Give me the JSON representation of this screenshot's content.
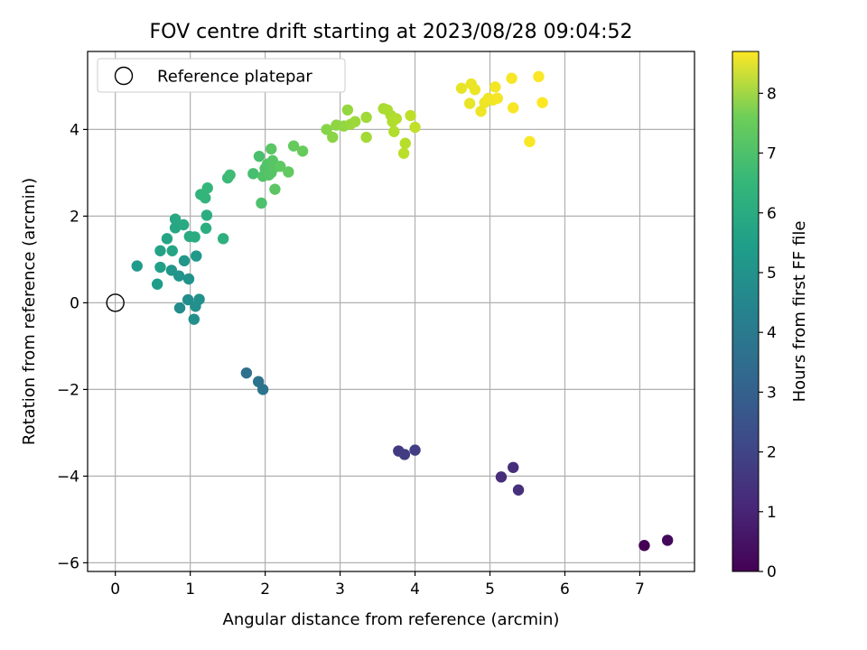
{
  "chart_data": {
    "type": "scatter",
    "title": "FOV centre drift starting at 2023/08/28 09:04:52",
    "xlabel": "Angular distance from reference (arcmin)",
    "ylabel": "Rotation from reference (arcmin)",
    "xlim": [
      -0.37,
      7.73
    ],
    "ylim": [
      -6.2,
      5.8
    ],
    "xticks": [
      0,
      1,
      2,
      3,
      4,
      5,
      6,
      7
    ],
    "yticks": [
      -6,
      -4,
      -2,
      0,
      2,
      4
    ],
    "grid": true,
    "legend": {
      "position": "upper-left",
      "label": "Reference platepar"
    },
    "reference_point": {
      "x": 0,
      "y": 0
    },
    "colorbar": {
      "label": "Hours from first FF file",
      "colormap": "viridis",
      "range": [
        0,
        8.7
      ],
      "ticks": [
        0,
        1,
        2,
        3,
        4,
        5,
        6,
        7,
        8
      ]
    },
    "series": [
      {
        "points": [
          {
            "x": 7.06,
            "y": -5.6,
            "c": 0.0
          },
          {
            "x": 7.37,
            "y": -5.48,
            "c": 0.2
          },
          {
            "x": 5.15,
            "y": -4.02,
            "c": 1.1
          },
          {
            "x": 5.31,
            "y": -3.8,
            "c": 1.15
          },
          {
            "x": 5.38,
            "y": -4.32,
            "c": 1.2
          },
          {
            "x": 3.78,
            "y": -3.42,
            "c": 1.5
          },
          {
            "x": 3.86,
            "y": -3.5,
            "c": 1.55
          },
          {
            "x": 4.0,
            "y": -3.4,
            "c": 1.6
          },
          {
            "x": 1.75,
            "y": -1.62,
            "c": 3.2
          },
          {
            "x": 1.91,
            "y": -1.82,
            "c": 3.3
          },
          {
            "x": 1.97,
            "y": -2.0,
            "c": 3.35
          },
          {
            "x": 0.86,
            "y": -0.12,
            "c": 4.2
          },
          {
            "x": 0.97,
            "y": 0.07,
            "c": 4.25
          },
          {
            "x": 1.05,
            "y": -0.38,
            "c": 4.3
          },
          {
            "x": 1.07,
            "y": -0.08,
            "c": 4.35
          },
          {
            "x": 1.12,
            "y": 0.08,
            "c": 4.4
          },
          {
            "x": 0.98,
            "y": 0.55,
            "c": 4.45
          },
          {
            "x": 0.85,
            "y": 0.62,
            "c": 4.5
          },
          {
            "x": 0.75,
            "y": 0.75,
            "c": 4.55
          },
          {
            "x": 0.92,
            "y": 0.97,
            "c": 4.6
          },
          {
            "x": 1.08,
            "y": 1.08,
            "c": 4.65
          },
          {
            "x": 0.29,
            "y": 0.85,
            "c": 4.7
          },
          {
            "x": 0.56,
            "y": 0.43,
            "c": 4.8
          },
          {
            "x": 0.6,
            "y": 0.82,
            "c": 4.9
          },
          {
            "x": 0.6,
            "y": 1.2,
            "c": 5.0
          },
          {
            "x": 0.69,
            "y": 1.48,
            "c": 5.05
          },
          {
            "x": 0.76,
            "y": 1.2,
            "c": 5.1
          },
          {
            "x": 0.8,
            "y": 1.73,
            "c": 5.15
          },
          {
            "x": 0.8,
            "y": 1.93,
            "c": 5.2
          },
          {
            "x": 0.91,
            "y": 1.8,
            "c": 5.25
          },
          {
            "x": 0.99,
            "y": 1.53,
            "c": 5.3
          },
          {
            "x": 1.06,
            "y": 1.52,
            "c": 5.35
          },
          {
            "x": 1.22,
            "y": 2.02,
            "c": 5.4
          },
          {
            "x": 1.21,
            "y": 1.72,
            "c": 5.45
          },
          {
            "x": 1.44,
            "y": 1.48,
            "c": 5.5
          },
          {
            "x": 1.14,
            "y": 2.5,
            "c": 5.65
          },
          {
            "x": 1.2,
            "y": 2.42,
            "c": 5.7
          },
          {
            "x": 1.23,
            "y": 2.65,
            "c": 5.75
          },
          {
            "x": 1.5,
            "y": 2.88,
            "c": 5.9
          },
          {
            "x": 1.53,
            "y": 2.95,
            "c": 5.95
          },
          {
            "x": 1.84,
            "y": 2.98,
            "c": 6.1
          },
          {
            "x": 1.92,
            "y": 3.38,
            "c": 6.15
          },
          {
            "x": 1.95,
            "y": 2.3,
            "c": 6.2
          },
          {
            "x": 1.97,
            "y": 2.92,
            "c": 6.25
          },
          {
            "x": 2.0,
            "y": 3.1,
            "c": 6.28
          },
          {
            "x": 2.03,
            "y": 3.2,
            "c": 6.3
          },
          {
            "x": 2.05,
            "y": 2.95,
            "c": 6.32
          },
          {
            "x": 2.08,
            "y": 3.0,
            "c": 6.35
          },
          {
            "x": 2.1,
            "y": 3.28,
            "c": 6.38
          },
          {
            "x": 2.12,
            "y": 3.12,
            "c": 6.4
          },
          {
            "x": 2.08,
            "y": 3.55,
            "c": 6.42
          },
          {
            "x": 2.13,
            "y": 2.62,
            "c": 6.45
          },
          {
            "x": 2.2,
            "y": 3.15,
            "c": 6.5
          },
          {
            "x": 2.31,
            "y": 3.02,
            "c": 6.55
          },
          {
            "x": 2.38,
            "y": 3.62,
            "c": 6.6
          },
          {
            "x": 2.5,
            "y": 3.5,
            "c": 6.65
          },
          {
            "x": 2.82,
            "y": 4.0,
            "c": 7.1
          },
          {
            "x": 2.9,
            "y": 3.82,
            "c": 7.15
          },
          {
            "x": 2.95,
            "y": 4.1,
            "c": 7.2
          },
          {
            "x": 3.05,
            "y": 4.08,
            "c": 7.25
          },
          {
            "x": 3.1,
            "y": 4.45,
            "c": 7.3
          },
          {
            "x": 3.14,
            "y": 4.12,
            "c": 7.35
          },
          {
            "x": 3.2,
            "y": 4.18,
            "c": 7.4
          },
          {
            "x": 3.35,
            "y": 4.28,
            "c": 7.45
          },
          {
            "x": 3.35,
            "y": 3.82,
            "c": 7.5
          },
          {
            "x": 3.58,
            "y": 4.48,
            "c": 7.55
          },
          {
            "x": 3.63,
            "y": 4.45,
            "c": 7.6
          },
          {
            "x": 3.68,
            "y": 4.32,
            "c": 7.62
          },
          {
            "x": 3.7,
            "y": 4.18,
            "c": 7.65
          },
          {
            "x": 3.72,
            "y": 3.95,
            "c": 7.68
          },
          {
            "x": 3.75,
            "y": 4.25,
            "c": 7.7
          },
          {
            "x": 3.87,
            "y": 3.68,
            "c": 7.75
          },
          {
            "x": 3.85,
            "y": 3.45,
            "c": 7.8
          },
          {
            "x": 3.94,
            "y": 4.32,
            "c": 7.85
          },
          {
            "x": 4.0,
            "y": 4.05,
            "c": 7.9
          },
          {
            "x": 4.62,
            "y": 4.95,
            "c": 8.4
          },
          {
            "x": 4.73,
            "y": 4.6,
            "c": 8.42
          },
          {
            "x": 4.75,
            "y": 5.05,
            "c": 8.44
          },
          {
            "x": 4.8,
            "y": 4.92,
            "c": 8.46
          },
          {
            "x": 4.88,
            "y": 4.42,
            "c": 8.48
          },
          {
            "x": 4.93,
            "y": 4.62,
            "c": 8.5
          },
          {
            "x": 4.98,
            "y": 4.72,
            "c": 8.52
          },
          {
            "x": 5.04,
            "y": 4.68,
            "c": 8.54
          },
          {
            "x": 5.07,
            "y": 4.98,
            "c": 8.56
          },
          {
            "x": 5.1,
            "y": 4.72,
            "c": 8.58
          },
          {
            "x": 5.29,
            "y": 5.18,
            "c": 8.6
          },
          {
            "x": 5.31,
            "y": 4.5,
            "c": 8.62
          },
          {
            "x": 5.53,
            "y": 3.72,
            "c": 8.64
          },
          {
            "x": 5.65,
            "y": 5.22,
            "c": 8.66
          },
          {
            "x": 5.7,
            "y": 4.62,
            "c": 8.68
          }
        ]
      }
    ]
  }
}
